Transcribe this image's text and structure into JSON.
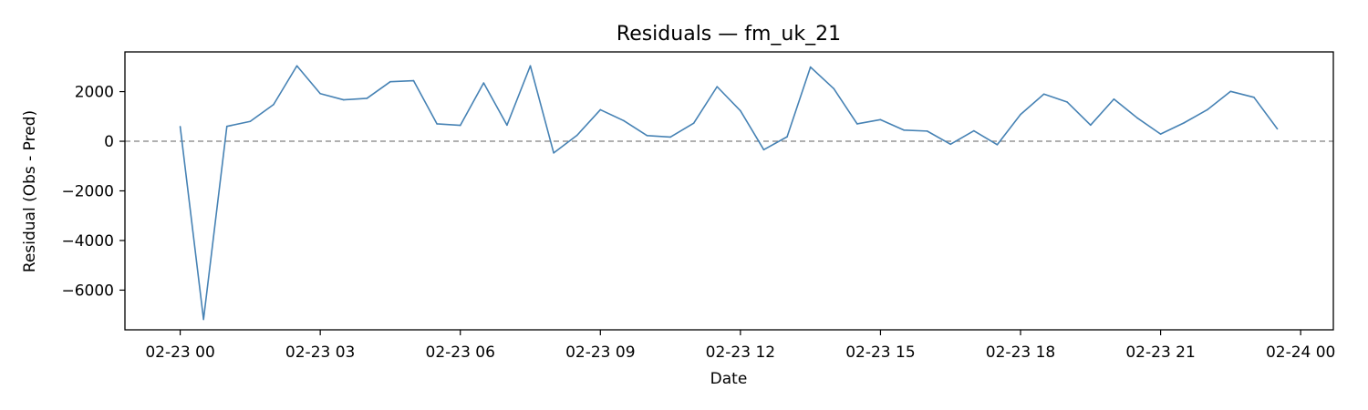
{
  "chart_data": {
    "type": "line",
    "title": "Residuals — fm_uk_21",
    "xlabel": "Date",
    "ylabel": "Residual (Obs - Pred)",
    "x_tick_labels": [
      "02-23 00",
      "02-23 03",
      "02-23 06",
      "02-23 09",
      "02-23 12",
      "02-23 15",
      "02-23 18",
      "02-23 21",
      "02-24 00"
    ],
    "x_ticks": [
      "2024-02-23T00:00",
      "2024-02-23T03:00",
      "2024-02-23T06:00",
      "2024-02-23T09:00",
      "2024-02-23T12:00",
      "2024-02-23T15:00",
      "2024-02-23T18:00",
      "2024-02-23T21:00",
      "2024-02-24T00:00"
    ],
    "y_ticks": [
      2000,
      0,
      -2000,
      -4000,
      -6000
    ],
    "y_tick_labels": [
      "2000",
      "0",
      "−2000",
      "−4000",
      "−6000"
    ],
    "xlim": [
      "2024-02-22T22:49",
      "2024-02-24T00:42"
    ],
    "ylim": [
      -7600,
      3600
    ],
    "reference_line": {
      "y": 0,
      "style": "dashed",
      "color": "#808080"
    },
    "grid": false,
    "line_color": "#4682b4",
    "series": [
      {
        "x": [
          "2024-02-23T00:00",
          "2024-02-23T00:30",
          "2024-02-23T01:00",
          "2024-02-23T01:30",
          "2024-02-23T02:00",
          "2024-02-23T02:30",
          "2024-02-23T03:00",
          "2024-02-23T03:30",
          "2024-02-23T04:00",
          "2024-02-23T04:30",
          "2024-02-23T05:00",
          "2024-02-23T05:30",
          "2024-02-23T06:00",
          "2024-02-23T06:30",
          "2024-02-23T07:00",
          "2024-02-23T07:30",
          "2024-02-23T08:00",
          "2024-02-23T08:30",
          "2024-02-23T09:00",
          "2024-02-23T09:30",
          "2024-02-23T10:00",
          "2024-02-23T10:30",
          "2024-02-23T11:00",
          "2024-02-23T11:30",
          "2024-02-23T12:00",
          "2024-02-23T12:30",
          "2024-02-23T13:00",
          "2024-02-23T13:30",
          "2024-02-23T14:00",
          "2024-02-23T14:30",
          "2024-02-23T15:00",
          "2024-02-23T15:30",
          "2024-02-23T16:00",
          "2024-02-23T16:30",
          "2024-02-23T17:00",
          "2024-02-23T17:30",
          "2024-02-23T18:00",
          "2024-02-23T18:30",
          "2024-02-23T19:00",
          "2024-02-23T19:30",
          "2024-02-23T20:00",
          "2024-02-23T20:30",
          "2024-02-23T21:00",
          "2024-02-23T21:30",
          "2024-02-23T22:00",
          "2024-02-23T22:30",
          "2024-02-23T23:00",
          "2024-02-23T23:30"
        ],
        "values": [
          590,
          -7180,
          600,
          800,
          1480,
          3040,
          1920,
          1670,
          1730,
          2400,
          2440,
          700,
          640,
          2350,
          650,
          3040,
          -470,
          240,
          1270,
          830,
          230,
          170,
          730,
          2200,
          1230,
          -340,
          180,
          2990,
          2120,
          700,
          870,
          450,
          410,
          -120,
          420,
          -140,
          1080,
          1900,
          1580,
          650,
          1700,
          940,
          290,
          740,
          1270,
          2010,
          1770,
          500
        ]
      }
    ]
  }
}
